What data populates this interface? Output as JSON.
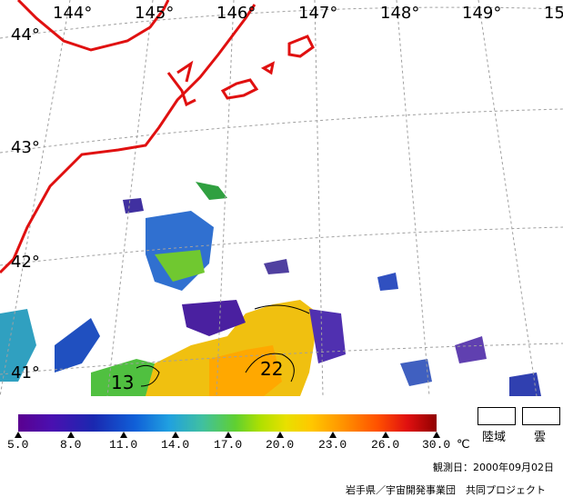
{
  "map": {
    "longitude_labels": [
      "144°",
      "145°",
      "146°",
      "147°",
      "148°",
      "149°",
      "15"
    ],
    "latitude_labels": [
      "44°",
      "43°",
      "42°",
      "41°"
    ],
    "contour_labels": [
      "13",
      "22"
    ]
  },
  "legend": {
    "tick_labels": [
      "5.0",
      "8.0",
      "11.0",
      "14.0",
      "17.0",
      "20.0",
      "23.0",
      "26.0",
      "30.0"
    ],
    "unit": "℃",
    "land_label": "陸域",
    "cloud_label": "雲"
  },
  "footer": {
    "observation_date": "観測日：2000年09月02日",
    "credit": "岩手県／宇宙開発事業団　共同プロジェクト"
  },
  "colors": {
    "coastline": "#e01010",
    "grid": "#a0a0a0"
  }
}
